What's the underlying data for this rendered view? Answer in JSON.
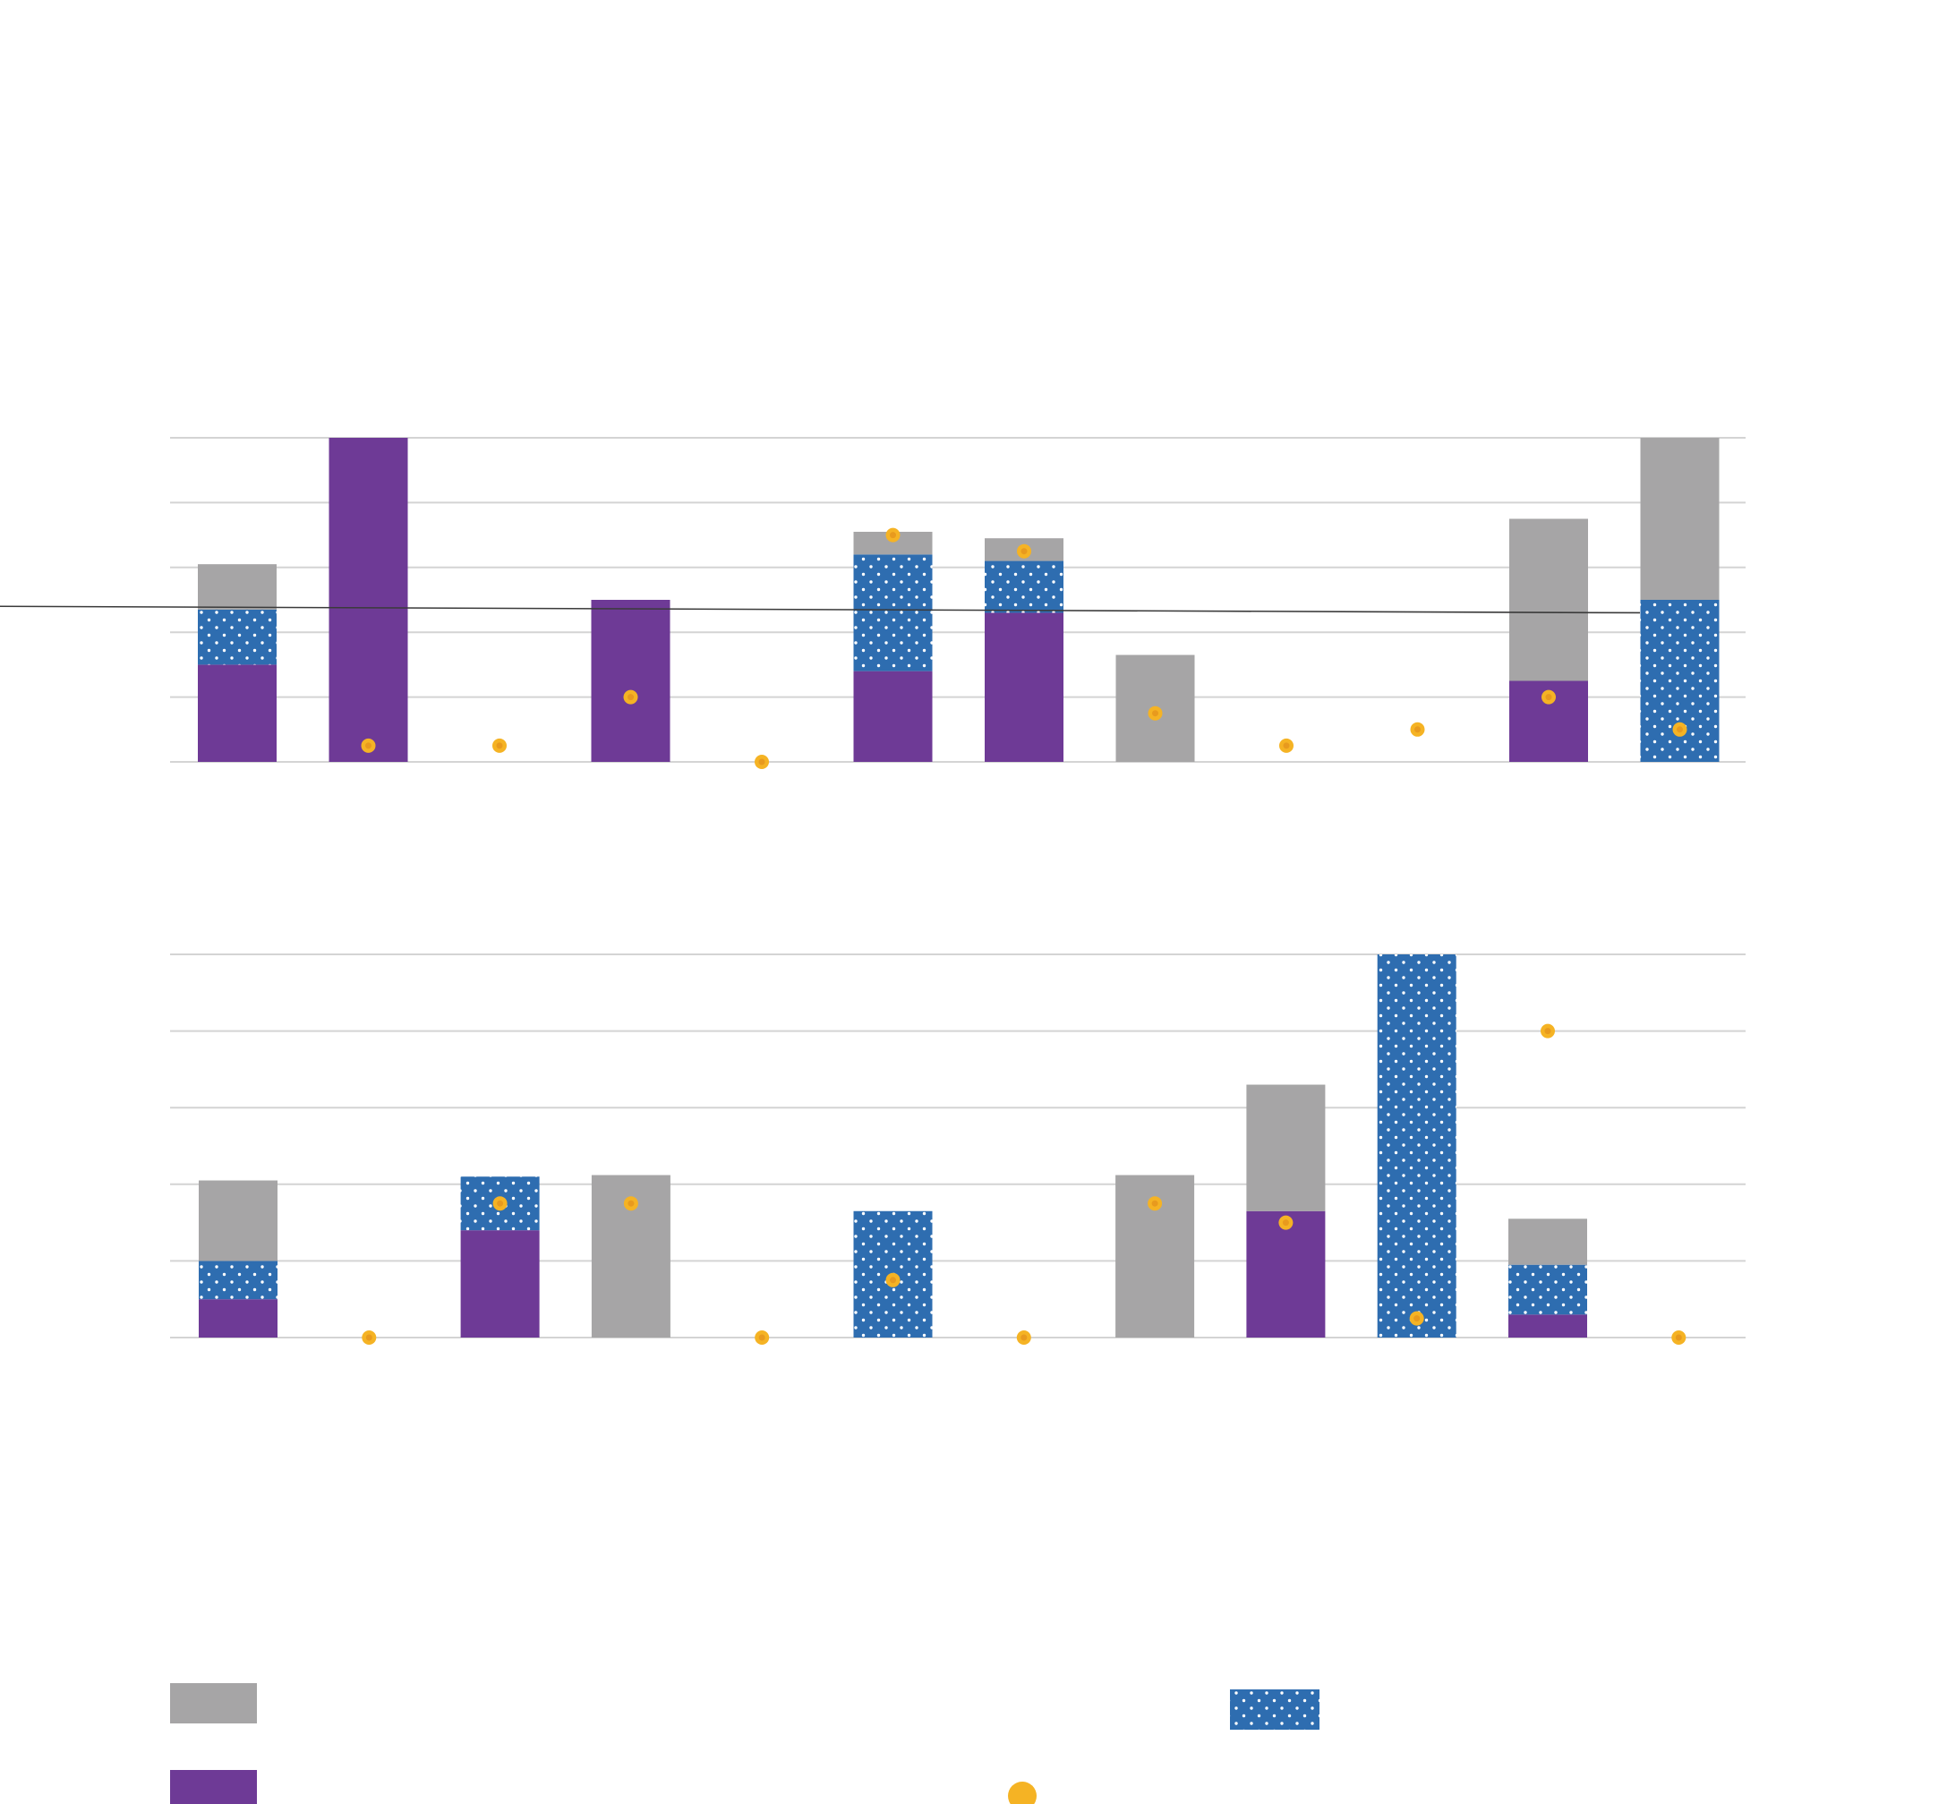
{
  "colors": {
    "grey": "#A6A5A6",
    "purple": "#6E3A96",
    "blue": "#2E6DB0",
    "gold": "#F5B324",
    "gold_center": "#E89A1E",
    "grid": "#D4D4D4",
    "line": "#3A3A3A"
  },
  "legend": {
    "entries": [
      {
        "key": "grey",
        "label": ""
      },
      {
        "key": "purple",
        "label": ""
      },
      {
        "key": "blue",
        "label": ""
      },
      {
        "key": "gold",
        "label": ""
      }
    ]
  },
  "chart_data": [
    {
      "type": "bar",
      "stacked": true,
      "title": "",
      "xlabel": "",
      "ylabel": "",
      "ylim": [
        0,
        5
      ],
      "grid": true,
      "categories": [
        "",
        "",
        "",
        "",
        "",
        "",
        "",
        "",
        "",
        "",
        "",
        ""
      ],
      "series": [
        {
          "key": "purple",
          "values": [
            1.5,
            5.0,
            0,
            2.5,
            0,
            1.4,
            2.3,
            0,
            0,
            0,
            1.25,
            0
          ]
        },
        {
          "key": "blue",
          "values": [
            0.85,
            0,
            0,
            0,
            0,
            1.8,
            0.8,
            0,
            0,
            0,
            0,
            2.5
          ]
        },
        {
          "key": "grey",
          "values": [
            0.7,
            0,
            0,
            0,
            0,
            0.35,
            0.35,
            1.65,
            0,
            0,
            2.5,
            2.5
          ]
        }
      ],
      "markers": {
        "key": "gold",
        "values": [
          null,
          0.25,
          0.25,
          1.0,
          0.0,
          3.5,
          3.25,
          0.75,
          0.25,
          0.5,
          1.0,
          0.5
        ]
      },
      "reference_line": {
        "color": "line",
        "y_start": 2.4,
        "y_end": 2.3
      }
    },
    {
      "type": "bar",
      "stacked": true,
      "title": "",
      "xlabel": "",
      "ylabel": "",
      "ylim": [
        0,
        5
      ],
      "grid": true,
      "categories": [
        "",
        "",
        "",
        "",
        "",
        "",
        "",
        "",
        "",
        "",
        "",
        ""
      ],
      "series": [
        {
          "key": "purple",
          "values": [
            0.5,
            0,
            1.4,
            0,
            0,
            0,
            0,
            0,
            1.65,
            0,
            0.3,
            0
          ]
        },
        {
          "key": "blue",
          "values": [
            0.5,
            0,
            0.7,
            0,
            0,
            1.65,
            0,
            0,
            0,
            5.0,
            0.65,
            0
          ]
        },
        {
          "key": "grey",
          "values": [
            1.05,
            0,
            0,
            2.12,
            0,
            0,
            0,
            2.12,
            1.65,
            0,
            0.6,
            0
          ]
        }
      ],
      "markers": {
        "key": "gold",
        "values": [
          null,
          0.0,
          1.75,
          1.75,
          0.0,
          0.75,
          0.0,
          1.75,
          1.5,
          0.25,
          4.0,
          0.0
        ]
      }
    }
  ]
}
